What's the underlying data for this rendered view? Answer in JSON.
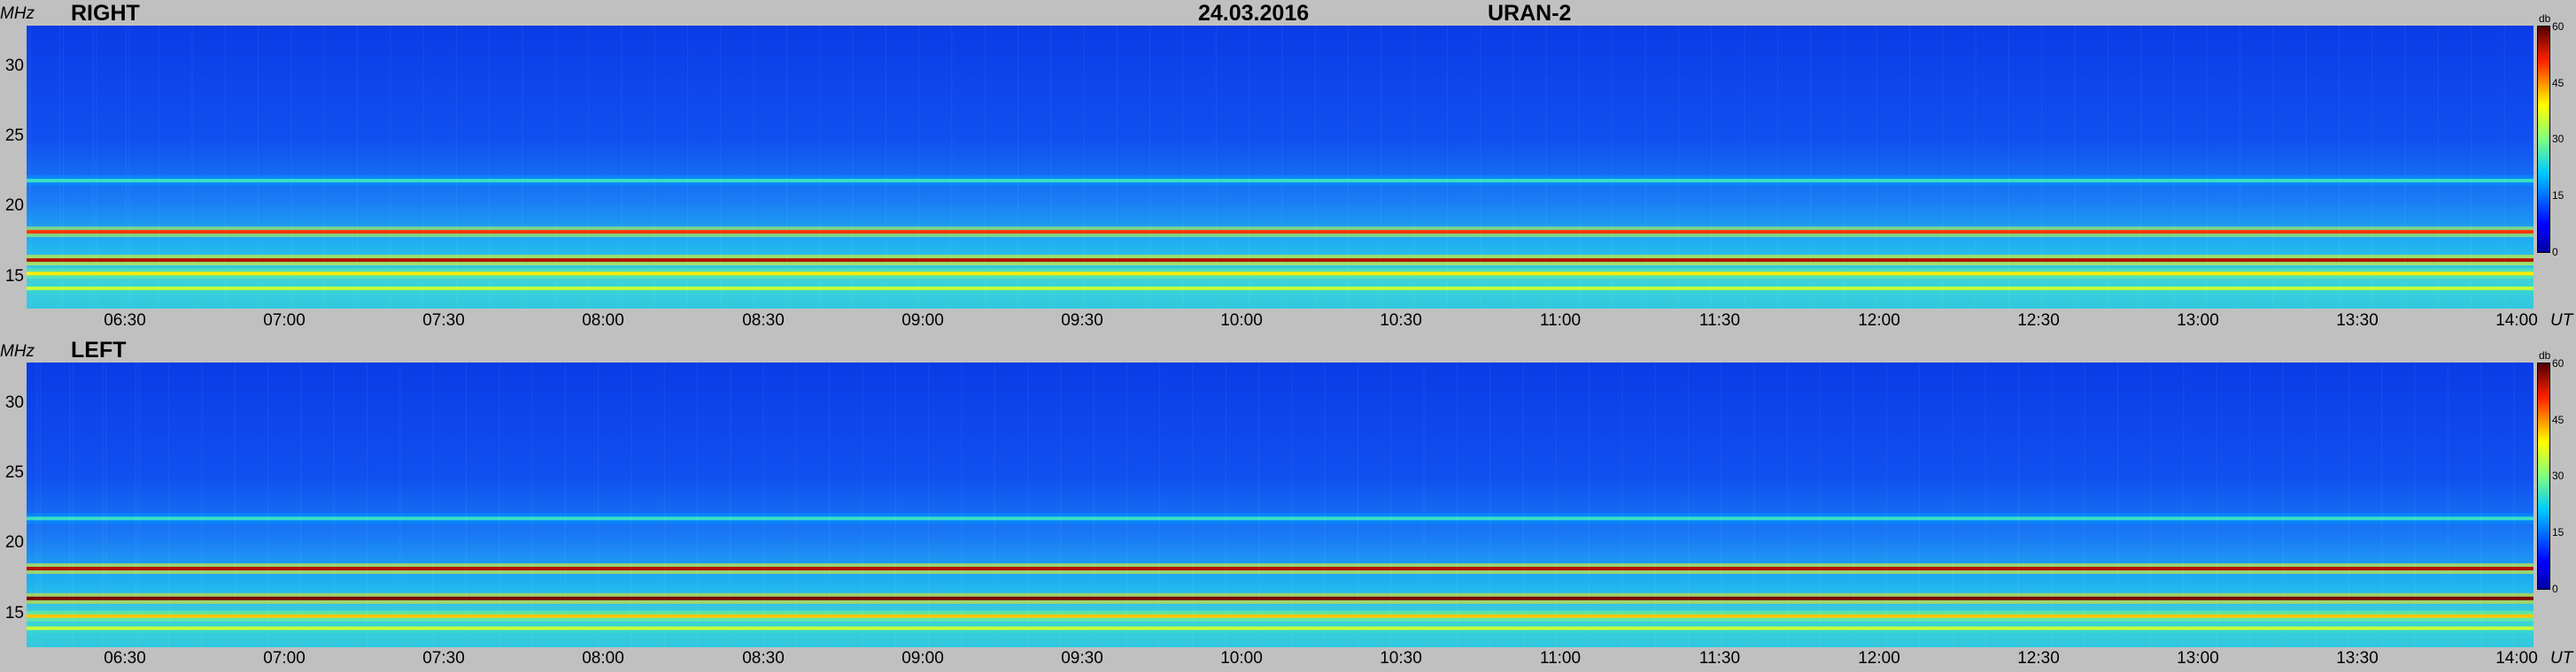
{
  "header": {
    "date": "24.03.2016",
    "station": "URAN-2"
  },
  "axis_units": {
    "y": "MHz",
    "x": "UT",
    "colorbar": "db"
  },
  "chart_data": [
    {
      "type": "heatmap",
      "title": "RIGHT",
      "x_ticks": [
        "06:30",
        "07:00",
        "07:30",
        "08:00",
        "08:30",
        "09:00",
        "09:30",
        "10:00",
        "10:30",
        "11:00",
        "11:30",
        "12:00",
        "12:30",
        "13:00",
        "13:30",
        "14:00"
      ],
      "x_range": [
        "06:12",
        "14:04"
      ],
      "y_ticks": [
        15,
        20,
        25,
        30
      ],
      "ylim": [
        12,
        33
      ],
      "colorbar": {
        "ticks": [
          0,
          15,
          30,
          45,
          60
        ],
        "range": [
          0,
          60
        ]
      },
      "bands_mhz": [
        {
          "freq": 15.6,
          "level_db": 55
        },
        {
          "freq": 17.7,
          "level_db": 50
        },
        {
          "freq": 14.6,
          "level_db": 40
        },
        {
          "freq": 13.5,
          "level_db": 35
        },
        {
          "freq": 21.5,
          "level_db": 25
        }
      ]
    },
    {
      "type": "heatmap",
      "title": "LEFT",
      "x_ticks": [
        "06:30",
        "07:00",
        "07:30",
        "08:00",
        "08:30",
        "09:00",
        "09:30",
        "10:00",
        "10:30",
        "11:00",
        "11:30",
        "12:00",
        "12:30",
        "13:00",
        "13:30",
        "14:00"
      ],
      "x_range": [
        "06:12",
        "14:04"
      ],
      "y_ticks": [
        15,
        20,
        25,
        30
      ],
      "ylim": [
        12,
        33
      ],
      "colorbar": {
        "ticks": [
          0,
          15,
          30,
          45,
          60
        ],
        "range": [
          0,
          60
        ]
      },
      "bands_mhz": [
        {
          "freq": 15.6,
          "level_db": 58
        },
        {
          "freq": 17.8,
          "level_db": 55
        },
        {
          "freq": 14.3,
          "level_db": 42
        },
        {
          "freq": 13.4,
          "level_db": 35
        },
        {
          "freq": 21.5,
          "level_db": 25
        }
      ]
    }
  ]
}
